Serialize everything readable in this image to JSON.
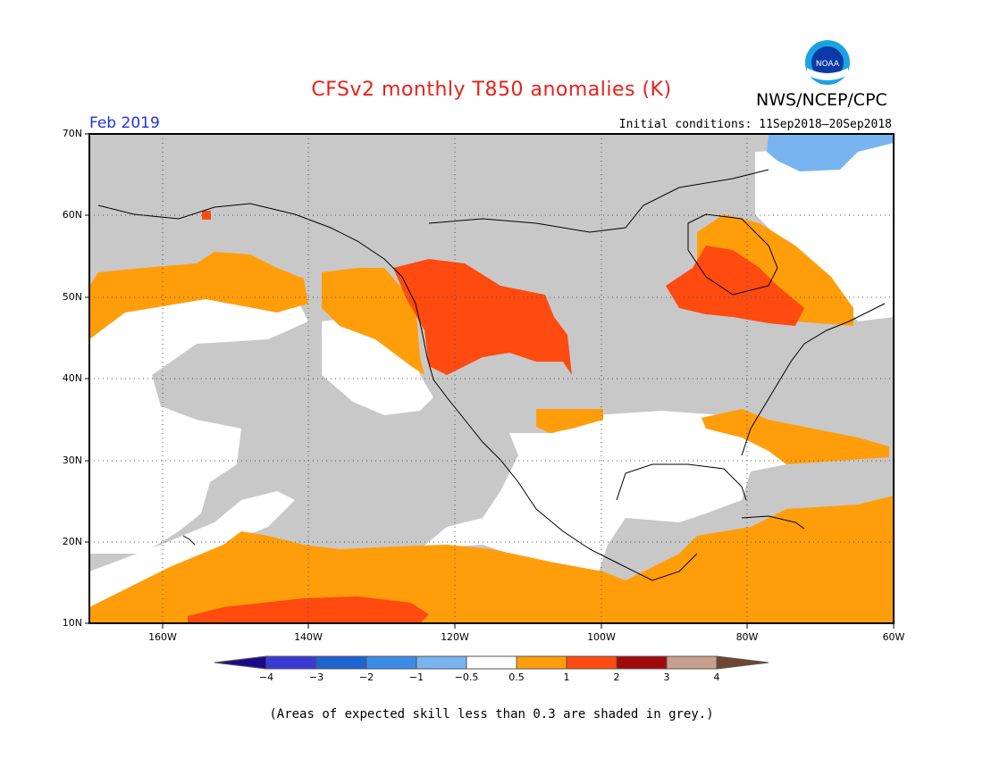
{
  "header": {
    "title": "CFSv2 monthly T850 anomalies (K)",
    "agency": "NWS/NCEP/CPC",
    "logo_text": "NOAA",
    "valid_month": "Feb 2019",
    "initial_conditions": "Initial conditions: 11Sep2018–20Sep2018"
  },
  "map": {
    "lat_range": [
      10,
      70
    ],
    "lon_range": [
      -170,
      -60
    ],
    "lat_labels": [
      "70N",
      "60N",
      "50N",
      "40N",
      "30N",
      "20N",
      "10N"
    ],
    "lon_labels": [
      "160W",
      "140W",
      "120W",
      "100W",
      "80W",
      "60W"
    ],
    "low_skill_color": "#c8c8c8"
  },
  "colorbar": {
    "ticks": [
      "−4",
      "−3",
      "−2",
      "−1",
      "−0.5",
      "0.5",
      "1",
      "2",
      "3",
      "4"
    ],
    "colors": [
      "#1a0a8a",
      "#3a3ad2",
      "#1e64d2",
      "#3c8ce6",
      "#78b4f0",
      "#ffffff",
      "#ff9e0a",
      "#ff4a10",
      "#a00a0a",
      "#c9a08c",
      "#6e4632"
    ]
  },
  "footnote": "(Areas of expected skill less than 0.3 are shaded in grey.)"
}
